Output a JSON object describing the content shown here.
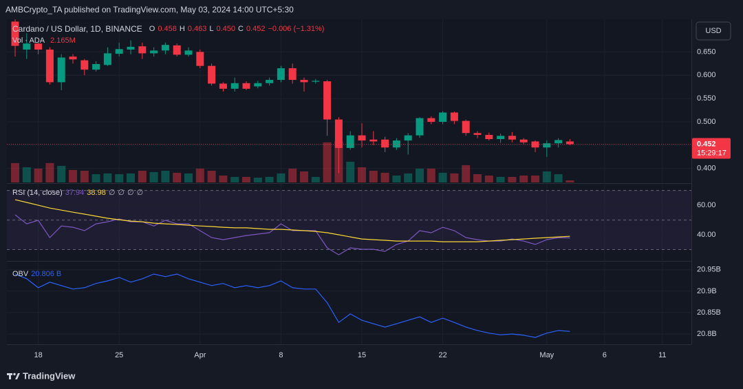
{
  "header": {
    "attribution": "AMBCrypto_TA published on TradingView.com, May 03, 2024 14:00 UTC+5:30",
    "currency": "USD",
    "brand": "TradingView"
  },
  "chart_data": [
    {
      "type": "candlestick",
      "title": "Cardano / US Dollar, 1D, BINANCE",
      "categories": [
        null,
        null,
        "18",
        null,
        null,
        null,
        null,
        null,
        null,
        "25",
        null,
        null,
        null,
        null,
        null,
        null,
        "Apr",
        null,
        null,
        null,
        null,
        null,
        null,
        "8",
        null,
        null,
        null,
        null,
        null,
        null,
        "15",
        null,
        null,
        null,
        null,
        null,
        null,
        "22",
        null,
        null,
        null,
        null,
        null,
        null,
        null,
        null,
        "May",
        null,
        null,
        null,
        null,
        "6",
        null,
        null,
        null,
        null,
        "11"
      ],
      "open": [
        0.715,
        0.655,
        0.668,
        0.655,
        0.585,
        0.64,
        0.632,
        0.612,
        0.622,
        0.646,
        0.655,
        0.662,
        0.647,
        0.653,
        0.664,
        0.644,
        0.65,
        0.62,
        0.582,
        0.571,
        0.583,
        0.576,
        0.583,
        0.59,
        0.615,
        0.59,
        0.586,
        0.587,
        0.505,
        0.444,
        0.471,
        0.462,
        0.462,
        0.445,
        0.46,
        0.471,
        0.508,
        0.5,
        0.52,
        0.502,
        0.476,
        0.472,
        0.463,
        0.47,
        0.462,
        0.458,
        0.445,
        0.454,
        0.458,
        null,
        null,
        null,
        null,
        null,
        null,
        null,
        null
      ],
      "high": [
        0.73,
        0.69,
        0.672,
        0.66,
        0.645,
        0.645,
        0.635,
        0.63,
        0.66,
        0.67,
        0.675,
        0.67,
        0.66,
        0.67,
        0.668,
        0.66,
        0.655,
        0.625,
        0.585,
        0.595,
        0.587,
        0.588,
        0.595,
        0.62,
        0.625,
        0.595,
        0.592,
        0.59,
        0.51,
        0.48,
        0.497,
        0.48,
        0.468,
        0.465,
        0.476,
        0.51,
        0.512,
        0.523,
        0.522,
        0.505,
        0.48,
        0.477,
        0.475,
        0.478,
        0.465,
        0.46,
        0.46,
        0.465,
        0.463,
        null,
        null,
        null,
        null,
        null,
        null,
        null,
        null
      ],
      "low": [
        0.64,
        0.635,
        0.645,
        0.58,
        0.568,
        0.625,
        0.6,
        0.608,
        0.62,
        0.64,
        0.645,
        0.635,
        0.64,
        0.645,
        0.64,
        0.64,
        0.615,
        0.578,
        0.565,
        0.565,
        0.568,
        0.572,
        0.578,
        0.585,
        0.582,
        0.565,
        0.582,
        0.47,
        0.39,
        0.44,
        0.445,
        0.45,
        0.435,
        0.44,
        0.43,
        0.466,
        0.495,
        0.495,
        0.495,
        0.47,
        0.465,
        0.46,
        0.455,
        0.456,
        0.452,
        0.435,
        0.425,
        0.445,
        0.45,
        null,
        null,
        null,
        null,
        null,
        null,
        null,
        null
      ],
      "close": [
        0.663,
        0.668,
        0.655,
        0.585,
        0.638,
        0.634,
        0.612,
        0.624,
        0.647,
        0.656,
        0.661,
        0.647,
        0.653,
        0.665,
        0.644,
        0.653,
        0.62,
        0.582,
        0.571,
        0.583,
        0.571,
        0.583,
        0.59,
        0.615,
        0.59,
        0.585,
        0.588,
        0.505,
        0.444,
        0.471,
        0.46,
        0.458,
        0.445,
        0.46,
        0.471,
        0.508,
        0.5,
        0.52,
        0.502,
        0.476,
        0.472,
        0.463,
        0.47,
        0.462,
        0.456,
        0.445,
        0.454,
        0.461,
        0.452,
        null,
        null,
        null,
        null,
        null,
        null,
        null,
        null
      ],
      "ohlc_labels": {
        "open_key": "O",
        "open": "0.458",
        "high_key": "H",
        "high": "0.463",
        "low_key": "L",
        "low": "0.450",
        "close_key": "C",
        "close": "0.452",
        "change": "−0.006 (−1.31%)"
      },
      "price_label": "0.452",
      "countdown": "15:29:17",
      "up_color": "#089981",
      "down_color": "#f23645",
      "volume": {
        "name": "Vol · ADA",
        "value_label": "2.165M",
        "ylim": [
          0,
          170
        ],
        "values": [
          20.2,
          15.8,
          14.4,
          20.2,
          17.3,
          13.0,
          12.2,
          8.6,
          9.4,
          8.6,
          9.4,
          12.2,
          10.8,
          12.2,
          10.1,
          9.4,
          14.4,
          12.2,
          7.2,
          5.8,
          5.8,
          5.0,
          5.8,
          9.4,
          14.4,
          11.5,
          5.8,
          41.8,
          43.2,
          21.6,
          15.8,
          12.2,
          10.1,
          7.2,
          9.4,
          14.4,
          14.4,
          10.1,
          9.4,
          18.0,
          8.6,
          7.2,
          5.8,
          5.8,
          7.2,
          7.2,
          11.5,
          8.6,
          2.165,
          null,
          null,
          null,
          null,
          null,
          null,
          null,
          null
        ]
      },
      "ylim": [
        0.37,
        0.72
      ],
      "yticks": [
        {
          "value": 0.4,
          "label": "0.400"
        },
        {
          "value": 0.45,
          "label": "0.450"
        },
        {
          "value": 0.5,
          "label": "0.500"
        },
        {
          "value": 0.55,
          "label": "0.550"
        },
        {
          "value": 0.6,
          "label": "0.600"
        },
        {
          "value": 0.65,
          "label": "0.650"
        }
      ],
      "grid": true
    },
    {
      "type": "line",
      "title": "RSI (14, close)",
      "extra_labels": [
        "∅",
        "∅",
        "∅",
        "∅"
      ],
      "series": [
        {
          "color": "#7e57c2",
          "values": [
            53.5,
            47.4,
            49.8,
            38.1,
            46.0,
            45.1,
            42.8,
            47.4,
            48.8,
            50.7,
            48.8,
            48.8,
            46.0,
            49.8,
            47.4,
            47.4,
            42.8,
            38.1,
            36.7,
            38.1,
            39.5,
            40.5,
            41.4,
            47.4,
            42.8,
            42.8,
            42.8,
            31.2,
            26.5,
            31.2,
            30.2,
            30.2,
            28.8,
            33.5,
            35.8,
            42.8,
            41.4,
            45.1,
            42.8,
            38.1,
            36.7,
            35.8,
            35.8,
            37.2,
            35.8,
            33.5,
            36.7,
            38.1,
            37.94,
            null,
            null,
            null,
            null,
            null,
            null,
            null,
            null
          ]
        },
        {
          "color": "#fdd835",
          "values": [
            63.7,
            61.9,
            60.0,
            58.1,
            56.7,
            55.3,
            54.0,
            52.6,
            51.2,
            50.2,
            49.3,
            48.8,
            47.9,
            47.4,
            47.0,
            46.5,
            46.0,
            45.6,
            45.1,
            44.7,
            44.7,
            44.2,
            43.7,
            43.7,
            43.3,
            42.8,
            42.3,
            41.4,
            40.0,
            38.6,
            37.2,
            36.7,
            36.3,
            35.8,
            35.8,
            35.8,
            35.8,
            35.3,
            35.3,
            35.3,
            35.3,
            35.8,
            36.3,
            36.7,
            37.2,
            37.7,
            38.1,
            38.6,
            38.98,
            null,
            null,
            null,
            null,
            null,
            null,
            null,
            null
          ]
        }
      ],
      "bands": [
        70,
        50,
        30
      ],
      "ylim": [
        22.8,
        74
      ],
      "yticks": [
        {
          "value": 40,
          "label": "40.00"
        },
        {
          "value": 60,
          "label": "60.00"
        }
      ]
    },
    {
      "type": "line",
      "title": "OBV",
      "last_value_label": "20.806 B",
      "series": [
        {
          "color": "#2962ff",
          "values": [
            20.94,
            20.929,
            20.908,
            20.921,
            20.913,
            20.905,
            20.908,
            20.918,
            20.924,
            20.932,
            20.921,
            20.929,
            20.94,
            20.934,
            20.94,
            20.929,
            20.921,
            20.913,
            20.918,
            20.908,
            20.913,
            20.908,
            20.913,
            20.924,
            20.908,
            20.905,
            20.905,
            20.873,
            20.827,
            20.847,
            20.832,
            20.824,
            20.816,
            20.824,
            20.832,
            20.84,
            20.827,
            20.837,
            20.827,
            20.816,
            20.808,
            20.802,
            20.798,
            20.8,
            20.797,
            20.792,
            20.802,
            20.808,
            20.806,
            null,
            null,
            null,
            null,
            null,
            null,
            null,
            null
          ]
        }
      ],
      "ylim": [
        20.776,
        20.969
      ],
      "yticks": [
        {
          "value": 20.8,
          "label": "20.8B"
        },
        {
          "value": 20.85,
          "label": "20.85B"
        },
        {
          "value": 20.9,
          "label": "20.9B"
        },
        {
          "value": 20.95,
          "label": "20.95B"
        }
      ]
    }
  ]
}
